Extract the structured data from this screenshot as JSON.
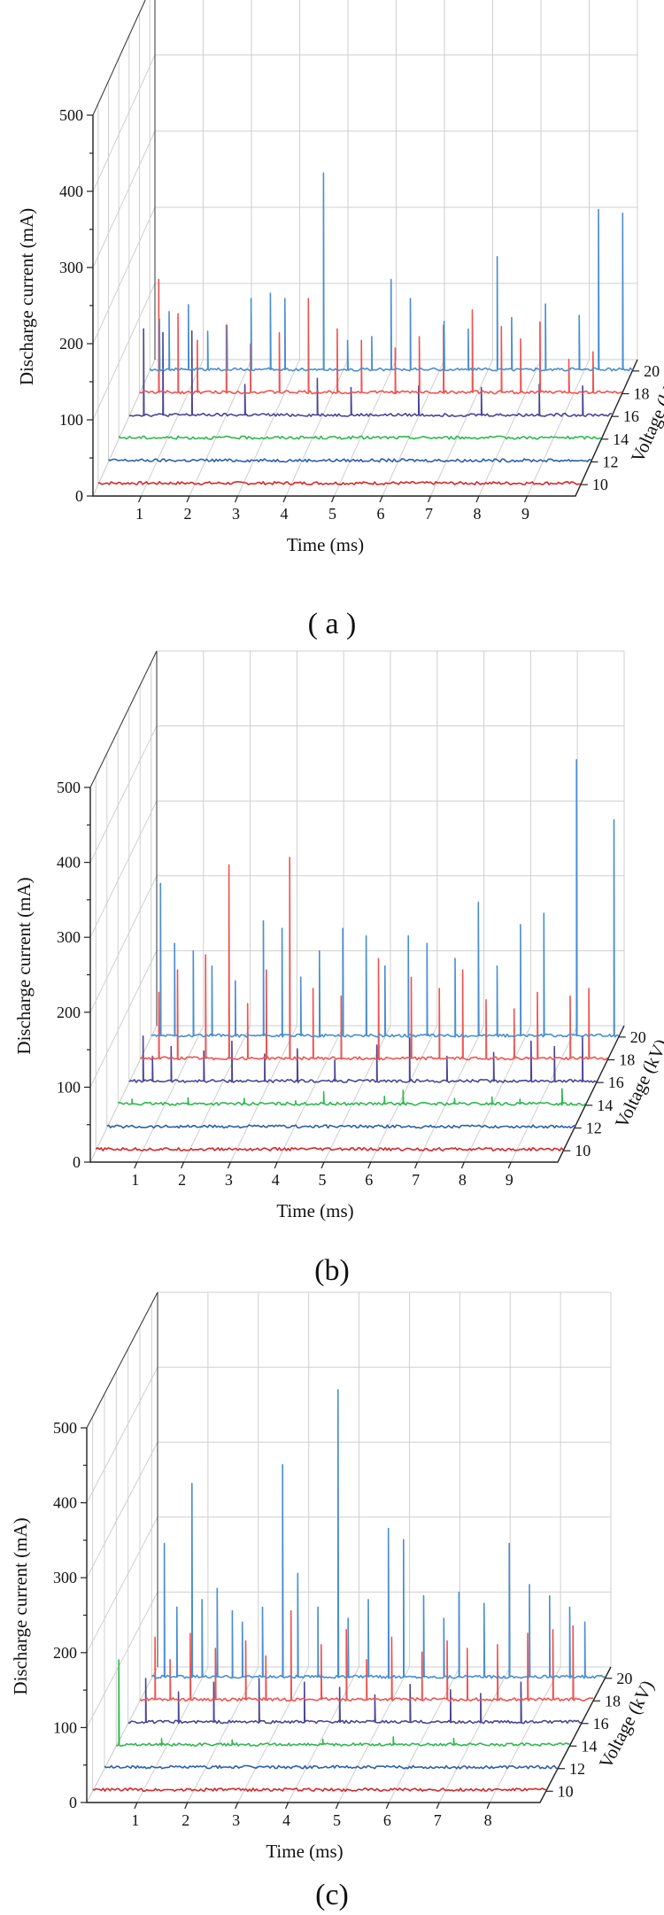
{
  "figure": {
    "panel_labels": [
      "( a )",
      "(b)",
      "(c)"
    ]
  },
  "chart_data": [
    {
      "type": "line",
      "title": "",
      "xlabel": "Time (ms)",
      "ylabel": "Discharge current (mA)",
      "zlabel": "Voltage (kV)",
      "xlim": [
        0,
        10
      ],
      "ylim": [
        0,
        500
      ],
      "x_ticks": [
        1,
        2,
        3,
        4,
        5,
        6,
        7,
        8,
        9
      ],
      "y_ticks": [
        0,
        100,
        200,
        300,
        400,
        500
      ],
      "z_ticks": [
        10,
        12,
        14,
        16,
        18,
        20
      ],
      "series": [
        {
          "voltage": 10,
          "color": "#d62728",
          "baseline": 2,
          "peaks": []
        },
        {
          "voltage": 12,
          "color": "#2e5fa8",
          "baseline": 2,
          "peaks": []
        },
        {
          "voltage": 14,
          "color": "#2fb84f",
          "baseline": 2,
          "peaks": []
        },
        {
          "voltage": 16,
          "color": "#4a4595",
          "baseline": 2,
          "peaks": [
            [
              0.3,
              115
            ],
            [
              0.7,
              110
            ],
            [
              1.3,
              112
            ],
            [
              2.4,
              42
            ],
            [
              3.9,
              50
            ],
            [
              4.6,
              38
            ],
            [
              6.0,
              40
            ],
            [
              7.3,
              38
            ],
            [
              8.5,
              42
            ],
            [
              9.4,
              40
            ]
          ]
        },
        {
          "voltage": 18,
          "color": "#ef5350",
          "baseline": 2,
          "peaks": [
            [
              0.4,
              150
            ],
            [
              0.8,
              105
            ],
            [
              1.2,
              70
            ],
            [
              1.8,
              90
            ],
            [
              2.3,
              65
            ],
            [
              2.9,
              80
            ],
            [
              3.5,
              125
            ],
            [
              4.1,
              85
            ],
            [
              4.6,
              70
            ],
            [
              5.3,
              60
            ],
            [
              5.8,
              75
            ],
            [
              6.3,
              90
            ],
            [
              6.9,
              110
            ],
            [
              7.5,
              88
            ],
            [
              7.9,
              72
            ],
            [
              8.3,
              94
            ],
            [
              8.9,
              45
            ],
            [
              9.4,
              55
            ]
          ]
        },
        {
          "voltage": 20,
          "color": "#4a8ed0",
          "baseline": 2,
          "peaks": [
            [
              0.2,
              68
            ],
            [
              0.4,
              78
            ],
            [
              0.8,
              87
            ],
            [
              1.2,
              52
            ],
            [
              1.6,
              60
            ],
            [
              2.1,
              95
            ],
            [
              2.5,
              102
            ],
            [
              2.8,
              95
            ],
            [
              3.6,
              260
            ],
            [
              4.1,
              40
            ],
            [
              4.6,
              45
            ],
            [
              5.0,
              120
            ],
            [
              5.4,
              95
            ],
            [
              6.1,
              65
            ],
            [
              6.6,
              55
            ],
            [
              7.2,
              150
            ],
            [
              7.5,
              70
            ],
            [
              8.2,
              88
            ],
            [
              8.9,
              73
            ],
            [
              9.3,
              212
            ],
            [
              9.8,
              207
            ]
          ]
        }
      ]
    },
    {
      "type": "line",
      "title": "",
      "xlabel": "Time (ms)",
      "ylabel": "Discharge current (mA)",
      "zlabel": "Voltage (kV)",
      "xlim": [
        0,
        10
      ],
      "ylim": [
        0,
        500
      ],
      "x_ticks": [
        1,
        2,
        3,
        4,
        5,
        6,
        7,
        8,
        9
      ],
      "y_ticks": [
        0,
        100,
        200,
        300,
        400,
        500
      ],
      "z_ticks": [
        10,
        12,
        14,
        16,
        18,
        20
      ],
      "series": [
        {
          "voltage": 10,
          "color": "#d62728",
          "baseline": 2,
          "peaks": []
        },
        {
          "voltage": 12,
          "color": "#2e5fa8",
          "baseline": 2,
          "peaks": []
        },
        {
          "voltage": 14,
          "color": "#2fb84f",
          "baseline": 2,
          "peaks": [
            [
              0.3,
              8
            ],
            [
              1.5,
              10
            ],
            [
              2.7,
              9
            ],
            [
              3.8,
              6
            ],
            [
              4.4,
              18
            ],
            [
              5.7,
              12
            ],
            [
              6.1,
              20
            ],
            [
              7.2,
              9
            ],
            [
              8.0,
              11
            ],
            [
              8.6,
              8
            ],
            [
              9.5,
              22
            ]
          ]
        },
        {
          "voltage": 16,
          "color": "#4a4595",
          "baseline": 2,
          "peaks": [
            [
              0.3,
              62
            ],
            [
              0.5,
              35
            ],
            [
              0.9,
              48
            ],
            [
              1.6,
              42
            ],
            [
              2.2,
              55
            ],
            [
              2.9,
              38
            ],
            [
              3.6,
              45
            ],
            [
              4.4,
              30
            ],
            [
              5.3,
              50
            ],
            [
              6.0,
              60
            ],
            [
              6.8,
              35
            ],
            [
              7.8,
              40
            ],
            [
              8.6,
              55
            ],
            [
              9.1,
              48
            ],
            [
              9.7,
              62
            ]
          ]
        },
        {
          "voltage": 18,
          "color": "#ef5350",
          "baseline": 2,
          "peaks": [
            [
              0.4,
              90
            ],
            [
              0.8,
              120
            ],
            [
              1.4,
              140
            ],
            [
              1.9,
              260
            ],
            [
              2.3,
              75
            ],
            [
              2.7,
              120
            ],
            [
              3.2,
              270
            ],
            [
              3.7,
              95
            ],
            [
              4.3,
              85
            ],
            [
              5.1,
              135
            ],
            [
              5.8,
              110
            ],
            [
              6.4,
              95
            ],
            [
              6.9,
              120
            ],
            [
              7.4,
              80
            ],
            [
              8.0,
              68
            ],
            [
              8.5,
              90
            ],
            [
              9.2,
              85
            ],
            [
              9.6,
              95
            ]
          ]
        },
        {
          "voltage": 20,
          "color": "#4a8ed0",
          "baseline": 2,
          "peaks": [
            [
              0.2,
              205
            ],
            [
              0.5,
              125
            ],
            [
              0.9,
              115
            ],
            [
              1.3,
              95
            ],
            [
              1.8,
              75
            ],
            [
              2.4,
              155
            ],
            [
              2.8,
              145
            ],
            [
              3.2,
              80
            ],
            [
              3.6,
              115
            ],
            [
              4.1,
              145
            ],
            [
              4.6,
              135
            ],
            [
              5.0,
              95
            ],
            [
              5.5,
              135
            ],
            [
              5.9,
              125
            ],
            [
              6.5,
              105
            ],
            [
              7.0,
              180
            ],
            [
              7.4,
              95
            ],
            [
              7.9,
              150
            ],
            [
              8.4,
              165
            ],
            [
              9.1,
              370
            ],
            [
              9.9,
              290
            ]
          ]
        }
      ]
    },
    {
      "type": "line",
      "title": "",
      "xlabel": "Time (ms)",
      "ylabel": "Discharge current (mA)",
      "zlabel": "Voltage (kV)",
      "xlim": [
        0,
        9
      ],
      "ylim": [
        0,
        500
      ],
      "x_ticks": [
        1,
        2,
        3,
        4,
        5,
        6,
        7,
        8
      ],
      "y_ticks": [
        0,
        100,
        200,
        300,
        400,
        500
      ],
      "z_ticks": [
        10,
        12,
        14,
        16,
        18,
        20
      ],
      "series": [
        {
          "voltage": 10,
          "color": "#d62728",
          "baseline": 2,
          "peaks": []
        },
        {
          "voltage": 12,
          "color": "#2e5fa8",
          "baseline": 2,
          "peaks": []
        },
        {
          "voltage": 14,
          "color": "#2fb84f",
          "baseline": 2,
          "peaks": [
            [
              0.05,
              115
            ],
            [
              0.9,
              10
            ],
            [
              2.3,
              8
            ],
            [
              4.1,
              9
            ],
            [
              5.5,
              12
            ],
            [
              6.7,
              10
            ]
          ]
        },
        {
          "voltage": 16,
          "color": "#4a4595",
          "baseline": 2,
          "peaks": [
            [
              0.35,
              60
            ],
            [
              1.0,
              42
            ],
            [
              1.7,
              55
            ],
            [
              2.6,
              60
            ],
            [
              3.5,
              55
            ],
            [
              4.2,
              48
            ],
            [
              4.9,
              38
            ],
            [
              5.6,
              52
            ],
            [
              6.4,
              45
            ],
            [
              7.0,
              40
            ],
            [
              7.8,
              55
            ]
          ]
        },
        {
          "voltage": 18,
          "color": "#ef5350",
          "baseline": 2,
          "peaks": [
            [
              0.3,
              85
            ],
            [
              0.6,
              55
            ],
            [
              1.0,
              90
            ],
            [
              1.5,
              70
            ],
            [
              2.1,
              80
            ],
            [
              2.5,
              60
            ],
            [
              3.0,
              120
            ],
            [
              3.6,
              75
            ],
            [
              4.1,
              95
            ],
            [
              4.5,
              55
            ],
            [
              5.0,
              85
            ],
            [
              5.6,
              65
            ],
            [
              6.1,
              80
            ],
            [
              6.5,
              70
            ],
            [
              7.1,
              75
            ],
            [
              7.7,
              90
            ],
            [
              8.2,
              95
            ],
            [
              8.6,
              100
            ]
          ]
        },
        {
          "voltage": 20,
          "color": "#4a8ed0",
          "baseline": 2,
          "peaks": [
            [
              0.25,
              180
            ],
            [
              0.5,
              95
            ],
            [
              0.8,
              260
            ],
            [
              1.0,
              105
            ],
            [
              1.3,
              120
            ],
            [
              1.6,
              90
            ],
            [
              1.8,
              75
            ],
            [
              2.2,
              95
            ],
            [
              2.6,
              285
            ],
            [
              2.9,
              140
            ],
            [
              3.3,
              95
            ],
            [
              3.7,
              385
            ],
            [
              3.9,
              80
            ],
            [
              4.3,
              105
            ],
            [
              4.7,
              200
            ],
            [
              5.0,
              185
            ],
            [
              5.4,
              110
            ],
            [
              5.8,
              80
            ],
            [
              6.1,
              115
            ],
            [
              6.6,
              100
            ],
            [
              7.1,
              180
            ],
            [
              7.5,
              125
            ],
            [
              7.9,
              110
            ],
            [
              8.3,
              95
            ],
            [
              8.6,
              75
            ]
          ]
        }
      ]
    }
  ]
}
